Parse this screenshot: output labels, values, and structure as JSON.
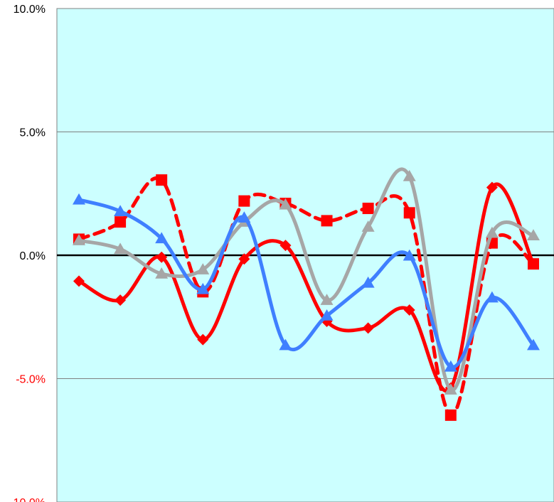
{
  "chart_data": {
    "type": "line",
    "title": "",
    "xlabel": "",
    "ylabel": "",
    "ylim": [
      -0.1,
      0.1
    ],
    "y_ticks": [
      0.1,
      0.05,
      0.0,
      -0.05,
      -0.1
    ],
    "y_tick_labels": [
      "10.0%",
      "5.0%",
      "0.0%",
      "-5.0%",
      "-10.0%"
    ],
    "x_count": 12,
    "grid": true,
    "legend": "none",
    "colors": {
      "plot_background": "#ccffff",
      "gridline": "#808080",
      "zero_line": "#000000",
      "positive_tick_label": "#000000",
      "negative_tick_label": "#ff0000"
    },
    "series": [
      {
        "color": "#ff0000",
        "marker": "diamond",
        "line_style": "solid",
        "values": [
          -0.0105,
          -0.0182,
          -0.0008,
          -0.0342,
          -0.0015,
          0.004,
          -0.0268,
          -0.0295,
          -0.0222,
          -0.0538,
          0.0275,
          -0.0035
        ]
      },
      {
        "color": "#ff0000",
        "marker": "square",
        "line_style": "dashed",
        "values": [
          0.0065,
          0.0135,
          0.0305,
          -0.0148,
          0.022,
          0.021,
          0.014,
          0.019,
          0.0172,
          -0.0648,
          0.005,
          -0.0035
        ]
      },
      {
        "color": "#a6a6a6",
        "marker": "triangle",
        "line_style": "solid",
        "values": [
          0.006,
          0.0025,
          -0.0075,
          -0.0058,
          0.0135,
          0.0205,
          -0.0182,
          0.0115,
          0.032,
          -0.0545,
          0.009,
          0.008
        ]
      },
      {
        "color": "#3f7fff",
        "marker": "triangle",
        "line_style": "solid",
        "values": [
          0.0225,
          0.0178,
          0.0068,
          -0.0138,
          0.0152,
          -0.0365,
          -0.0245,
          -0.0112,
          -0.0002,
          -0.0452,
          -0.0172,
          -0.0365
        ]
      }
    ]
  }
}
